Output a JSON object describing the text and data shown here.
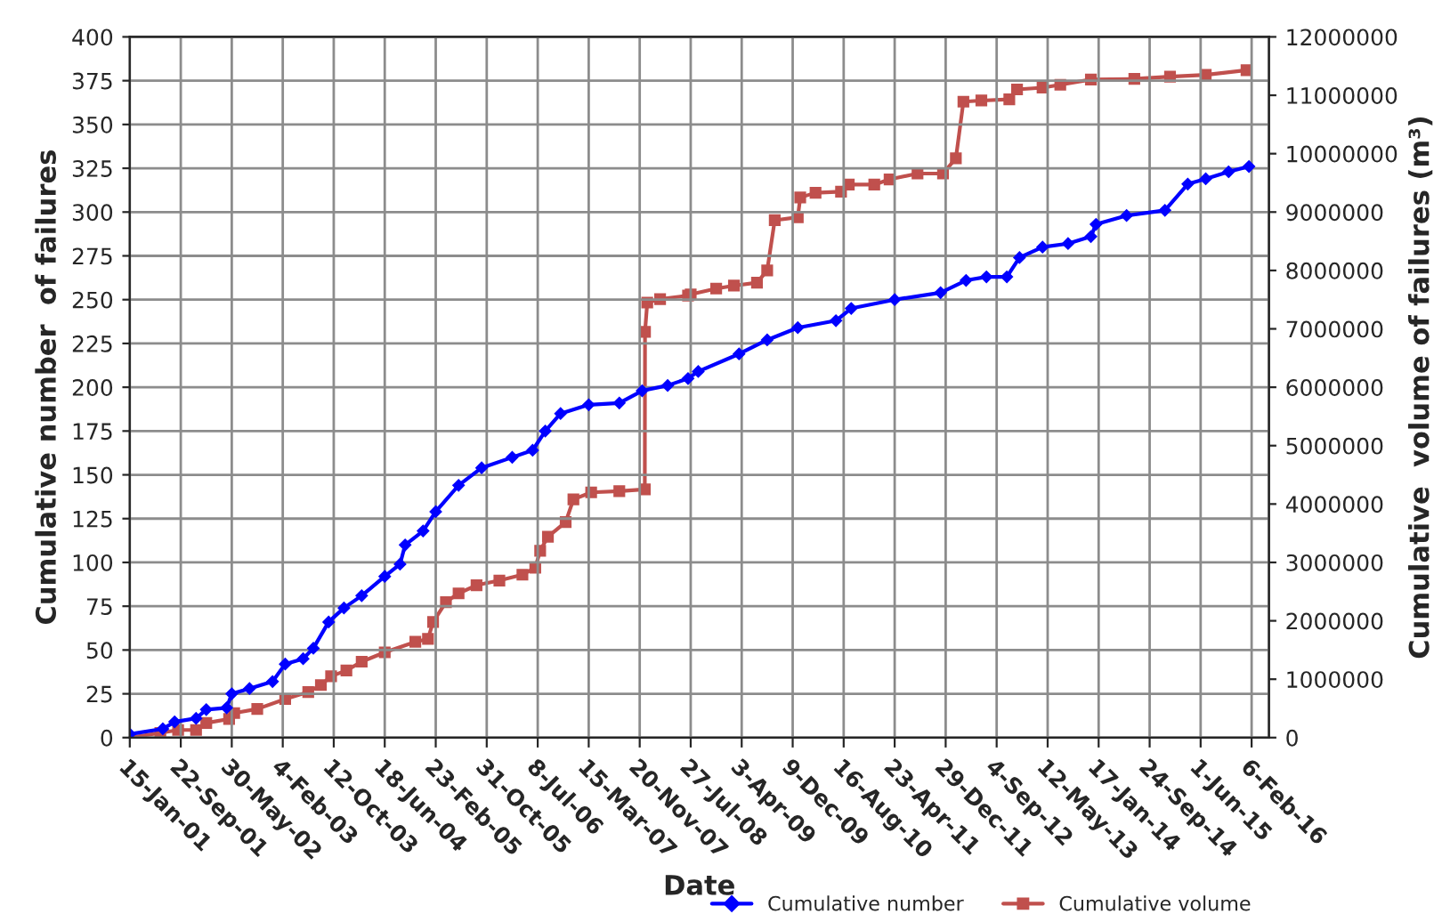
{
  "chart_data": {
    "type": "line",
    "xlabel": "Date",
    "ylabel": "Cumulative number  of failures",
    "y2label": "Cumulative  volume of failures (m³)",
    "xlim": [
      "2001-01-15",
      "2016-05-01"
    ],
    "xticks": [
      {
        "value": "2001-01-15",
        "label": "15-Jan-01"
      },
      {
        "value": "2001-09-22",
        "label": "22-Sep-01"
      },
      {
        "value": "2002-05-30",
        "label": "30-May-02"
      },
      {
        "value": "2003-02-04",
        "label": "4-Feb-03"
      },
      {
        "value": "2003-10-12",
        "label": "12-Oct-03"
      },
      {
        "value": "2004-06-18",
        "label": "18-Jun-04"
      },
      {
        "value": "2005-02-23",
        "label": "23-Feb-05"
      },
      {
        "value": "2005-10-31",
        "label": "31-Oct-05"
      },
      {
        "value": "2006-07-08",
        "label": "8-Jul-06"
      },
      {
        "value": "2007-03-15",
        "label": "15-Mar-07"
      },
      {
        "value": "2007-11-20",
        "label": "20-Nov-07"
      },
      {
        "value": "2008-07-27",
        "label": "27-Jul-08"
      },
      {
        "value": "2009-04-03",
        "label": "3-Apr-09"
      },
      {
        "value": "2009-12-09",
        "label": "9-Dec-09"
      },
      {
        "value": "2010-08-16",
        "label": "16-Aug-10"
      },
      {
        "value": "2011-04-23",
        "label": "23-Apr-11"
      },
      {
        "value": "2011-12-29",
        "label": "29-Dec-11"
      },
      {
        "value": "2012-09-04",
        "label": "4-Sep-12"
      },
      {
        "value": "2013-05-12",
        "label": "12-May-13"
      },
      {
        "value": "2014-01-17",
        "label": "17-Jan-14"
      },
      {
        "value": "2014-09-24",
        "label": "24-Sep-14"
      },
      {
        "value": "2015-06-01",
        "label": "1-Jun-15"
      },
      {
        "value": "2016-02-06",
        "label": "6-Feb-16"
      }
    ],
    "ylim": [
      0,
      400
    ],
    "yticks": [
      0,
      25,
      50,
      75,
      100,
      125,
      150,
      175,
      200,
      225,
      250,
      275,
      300,
      325,
      350,
      375,
      400
    ],
    "y2lim": [
      0,
      12000000
    ],
    "y2ticks": [
      0,
      1000000,
      2000000,
      3000000,
      4000000,
      5000000,
      6000000,
      7000000,
      8000000,
      9000000,
      10000000,
      11000000,
      12000000
    ],
    "grid": true,
    "legend": "bottom right",
    "line_style": "solid",
    "series": [
      {
        "name": "Cumulative number",
        "color": "#0000ff",
        "marker": "diamond",
        "x": [
          "2001-01-15",
          "2001-06-26",
          "2001-08-23",
          "2001-12-06",
          "2002-01-25",
          "2002-05-05",
          "2002-05-30",
          "2002-08-25",
          "2002-12-16",
          "2003-02-16",
          "2003-05-15",
          "2003-07-04",
          "2003-09-17",
          "2003-12-01",
          "2004-02-26",
          "2004-06-18",
          "2004-09-01",
          "2004-09-26",
          "2004-12-23",
          "2005-02-23",
          "2005-06-15",
          "2005-10-06",
          "2006-03-05",
          "2006-06-13",
          "2006-08-14",
          "2006-10-28",
          "2007-03-15",
          "2007-08-12",
          "2007-12-02",
          "2008-04-05",
          "2008-07-14",
          "2008-09-02",
          "2009-03-21",
          "2009-08-06",
          "2010-01-03",
          "2010-07-09",
          "2010-09-22",
          "2011-04-23",
          "2011-12-04",
          "2012-04-07",
          "2012-07-16",
          "2012-10-24",
          "2012-12-25",
          "2013-04-17",
          "2013-08-20",
          "2013-12-10",
          "2014-01-04",
          "2014-06-03",
          "2014-12-08",
          "2015-03-30",
          "2015-06-26",
          "2015-10-16",
          "2016-01-24"
        ],
        "values": [
          2,
          5,
          9,
          11,
          16,
          17,
          25,
          28,
          32,
          42,
          45,
          51,
          66,
          74,
          81,
          92,
          99,
          110,
          118,
          129,
          144,
          154,
          160,
          164,
          175,
          185,
          190,
          191,
          198,
          201,
          205,
          209,
          219,
          227,
          234,
          238,
          245,
          250,
          254,
          261,
          263,
          263,
          274,
          280,
          282,
          286,
          293,
          298,
          301,
          316,
          319,
          323,
          326
        ]
      },
      {
        "name": "Cumulative volume",
        "color": "#c0504d",
        "marker": "square",
        "axis": "y2",
        "x": [
          "2001-01-15",
          "2001-06-14",
          "2001-09-09",
          "2001-12-06",
          "2002-01-25",
          "2002-05-17",
          "2002-06-11",
          "2002-10-02",
          "2003-02-16",
          "2003-06-09",
          "2003-08-10",
          "2003-09-29",
          "2003-12-13",
          "2004-02-26",
          "2004-06-18",
          "2004-11-15",
          "2005-01-16",
          "2005-02-10",
          "2005-04-14",
          "2005-06-15",
          "2005-09-11",
          "2006-01-01",
          "2006-04-24",
          "2006-06-26",
          "2006-07-20",
          "2006-08-27",
          "2006-11-22",
          "2006-12-30",
          "2007-03-27",
          "2007-08-12",
          "2007-12-15",
          "2007-12-16",
          "2007-12-27",
          "2008-02-28",
          "2008-07-14",
          "2008-07-27",
          "2008-11-29",
          "2009-02-24",
          "2009-06-17",
          "2009-08-06",
          "2009-09-12",
          "2010-01-03",
          "2010-01-15",
          "2010-03-31",
          "2010-08-03",
          "2010-09-10",
          "2011-01-13",
          "2011-03-29",
          "2011-08-13",
          "2011-12-16",
          "2012-02-17",
          "2012-03-25",
          "2012-06-21",
          "2012-11-05",
          "2012-12-13",
          "2013-04-17",
          "2013-07-13",
          "2013-12-10",
          "2014-07-11",
          "2015-01-02",
          "2015-06-26",
          "2016-01-12"
        ],
        "values": [
          0,
          80000,
          130000,
          130000,
          250000,
          320000,
          420000,
          490000,
          660000,
          780000,
          900000,
          1050000,
          1150000,
          1300000,
          1460000,
          1640000,
          1690000,
          1980000,
          2320000,
          2470000,
          2610000,
          2690000,
          2790000,
          2910000,
          3200000,
          3440000,
          3690000,
          4080000,
          4200000,
          4220000,
          4250000,
          6950000,
          7450000,
          7510000,
          7570000,
          7590000,
          7690000,
          7740000,
          7790000,
          8000000,
          8860000,
          8910000,
          9250000,
          9330000,
          9350000,
          9470000,
          9470000,
          9560000,
          9660000,
          9660000,
          9920000,
          10890000,
          10910000,
          10930000,
          11100000,
          11130000,
          11180000,
          11270000,
          11280000,
          11320000,
          11350000,
          11430000
        ]
      }
    ]
  }
}
